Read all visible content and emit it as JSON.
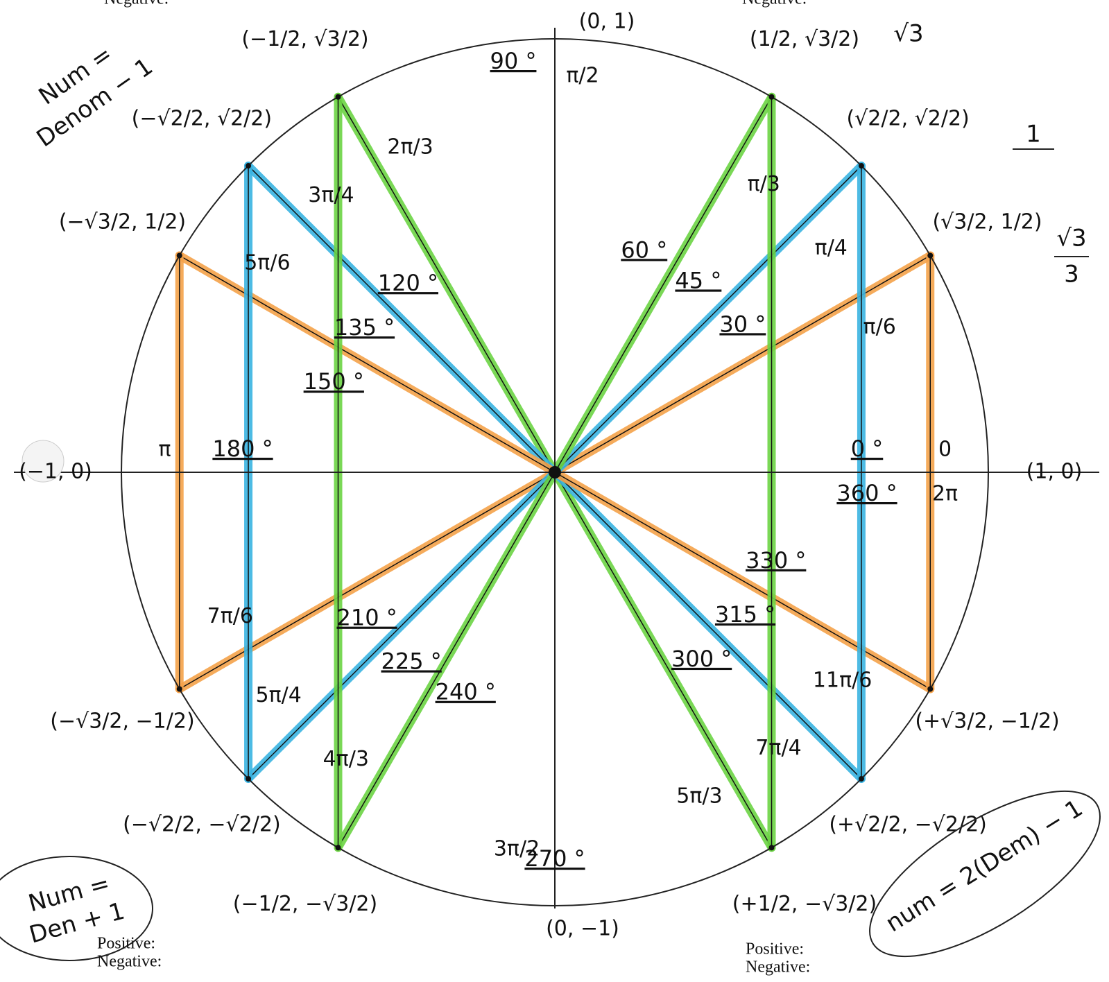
{
  "points": [
    {
      "coord": "(1, 0)",
      "deg": "0 °",
      "deg2": "360 °",
      "rad": "0",
      "rad2": "2π"
    },
    {
      "coord": "(√3/2, 1/2)",
      "deg": "30 °",
      "rad": "π/6"
    },
    {
      "coord": "(√2/2, √2/2)",
      "deg": "45 °",
      "rad": "π/4"
    },
    {
      "coord": "(1/2, √3/2)",
      "deg": "60 °",
      "rad": "π/3"
    },
    {
      "coord": "(0, 1)",
      "deg": "90 °",
      "rad": "π/2"
    },
    {
      "coord": "(−1/2, √3/2)",
      "deg": "120 °",
      "rad": "2π/3"
    },
    {
      "coord": "(−√2/2, √2/2)",
      "deg": "135 °",
      "rad": "3π/4"
    },
    {
      "coord": "(−√3/2, 1/2)",
      "deg": "150 °",
      "rad": "5π/6"
    },
    {
      "coord": "(−1, 0)",
      "deg": "180 °",
      "rad": "π"
    },
    {
      "coord": "(−√3/2, −1/2)",
      "deg": "210 °",
      "rad": "7π/6"
    },
    {
      "coord": "(−√2/2, −√2/2)",
      "deg": "225 °",
      "rad": "5π/4"
    },
    {
      "coord": "(−1/2, −√3/2)",
      "deg": "240 °",
      "rad": "4π/3"
    },
    {
      "coord": "(0, −1)",
      "deg": "270 °",
      "rad": "3π/2"
    },
    {
      "coord": "(+1/2, −√3/2)",
      "deg": "300 °",
      "rad": "5π/3"
    },
    {
      "coord": "(+√2/2, −√2/2)",
      "deg": "315 °",
      "rad": "7π/4"
    },
    {
      "coord": "(+√3/2, −1/2)",
      "deg": "330 °",
      "rad": "11π/6"
    }
  ],
  "handwritten": [
    {
      "lines": [
        "Num =",
        "Denom − 1"
      ]
    },
    {
      "lines": [
        "Num =",
        "Den + 1"
      ]
    },
    {
      "lines": [
        "num = 2(Dem) − 1"
      ]
    },
    {
      "lines": [
        "√3"
      ]
    },
    {
      "lines": [
        "1"
      ]
    },
    {
      "lines": [
        "√3",
        "3"
      ]
    }
  ],
  "corner_notes": {
    "top_left": [
      "Negative:"
    ],
    "top_right": [
      "Negative:"
    ],
    "bottom_left": [
      "Positive:",
      "Negative:"
    ],
    "bottom_right": [
      "Positive:",
      "Negative:"
    ]
  }
}
